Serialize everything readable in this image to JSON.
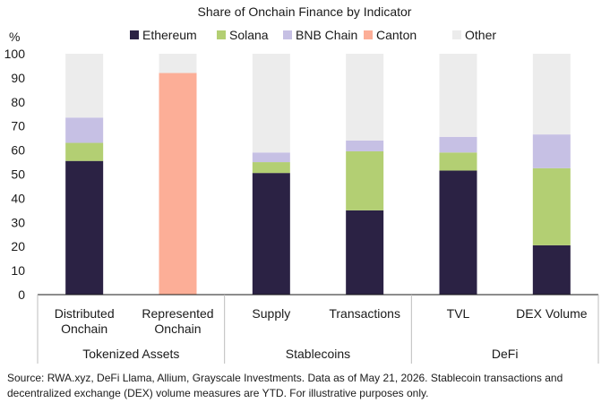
{
  "chart_data": {
    "type": "bar",
    "stacked": true,
    "title": "Share of Onchain Finance by Indicator",
    "y_unit": "%",
    "ylim": [
      0,
      100
    ],
    "yticks": [
      0,
      10,
      20,
      30,
      40,
      50,
      60,
      70,
      80,
      90,
      100
    ],
    "grid": false,
    "legend_position": "top",
    "categories": [
      [
        "Distributed",
        "Onchain"
      ],
      [
        "Represented",
        "Onchain"
      ],
      [
        "Supply"
      ],
      [
        "Transactions"
      ],
      [
        "TVL"
      ],
      [
        "DEX Volume"
      ]
    ],
    "groups": [
      {
        "label": "Tokenized Assets",
        "span": [
          0,
          1
        ]
      },
      {
        "label": "Stablecoins",
        "span": [
          2,
          3
        ]
      },
      {
        "label": "DeFi",
        "span": [
          4,
          5
        ]
      }
    ],
    "series": [
      {
        "name": "Ethereum",
        "color": "#2b2244",
        "values": [
          55.5,
          0,
          50.5,
          35,
          51.5,
          20.5
        ]
      },
      {
        "name": "Solana",
        "color": "#b3cf73",
        "values": [
          7.5,
          0,
          4.5,
          24.5,
          7.5,
          32
        ]
      },
      {
        "name": "BNB Chain",
        "color": "#c6c0e4",
        "values": [
          10.5,
          0,
          4,
          4.5,
          6.5,
          14
        ]
      },
      {
        "name": "Canton",
        "color": "#fcae97",
        "values": [
          0,
          92,
          0,
          0,
          0,
          0
        ]
      },
      {
        "name": "Other",
        "color": "#ececec",
        "values": [
          26.5,
          8,
          41,
          36,
          34.5,
          33.5
        ]
      }
    ]
  },
  "source": "Source: RWA.xyz, DeFi Llama, Allium, Grayscale Investments. Data as of May 21, 2026. Stablecoin transactions and decentralized exchange (DEX) volume measures are YTD. For illustrative purposes only."
}
